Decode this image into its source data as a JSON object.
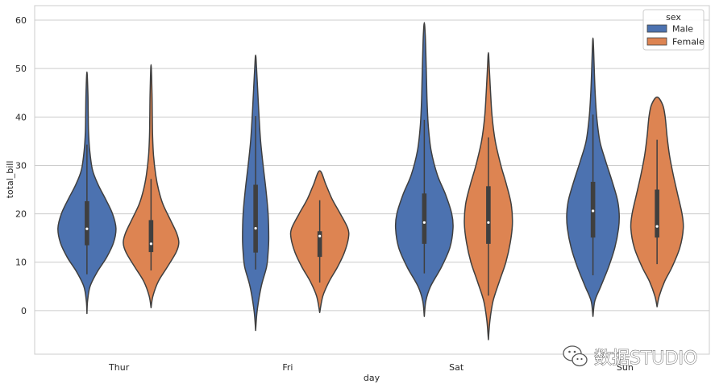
{
  "chart_data": {
    "type": "violin",
    "xlabel": "day",
    "ylabel": "total_bill",
    "categories": [
      "Thur",
      "Fri",
      "Sat",
      "Sun"
    ],
    "ylim": [
      -9,
      63
    ],
    "yticks": [
      0,
      10,
      20,
      30,
      40,
      50,
      60
    ],
    "grid": true,
    "legend": {
      "title": "sex",
      "placement": "top-right"
    },
    "series": [
      {
        "name": "Male",
        "color": "#4c72b0",
        "violins": [
          {
            "category": "Thur",
            "min": -0.6,
            "max": 49.3,
            "q1": 13.5,
            "median": 16.9,
            "q3": 22.6,
            "whisker_low": 7.5,
            "whisker_high": 34.3,
            "profile": [
              [
                -0.6,
                0
              ],
              [
                2,
                0.02
              ],
              [
                5,
                0.1
              ],
              [
                8,
                0.33
              ],
              [
                11,
                0.63
              ],
              [
                14,
                0.85
              ],
              [
                17,
                0.93
              ],
              [
                20,
                0.82
              ],
              [
                23,
                0.6
              ],
              [
                26,
                0.36
              ],
              [
                29,
                0.18
              ],
              [
                33,
                0.09
              ],
              [
                37,
                0.05
              ],
              [
                41,
                0.04
              ],
              [
                45,
                0.03
              ],
              [
                49.3,
                0
              ]
            ]
          },
          {
            "category": "Fri",
            "min": -4.1,
            "max": 52.8,
            "q1": 12.0,
            "median": 17.0,
            "q3": 26.0,
            "whisker_low": 8.5,
            "whisker_high": 40.2,
            "profile": [
              [
                -4.1,
                0
              ],
              [
                0,
                0.05
              ],
              [
                5,
                0.18
              ],
              [
                9,
                0.35
              ],
              [
                12,
                0.4
              ],
              [
                15,
                0.42
              ],
              [
                20,
                0.4
              ],
              [
                25,
                0.33
              ],
              [
                30,
                0.24
              ],
              [
                35,
                0.16
              ],
              [
                40,
                0.11
              ],
              [
                45,
                0.07
              ],
              [
                50,
                0.03
              ],
              [
                52.8,
                0
              ]
            ]
          },
          {
            "category": "Sat",
            "min": -1.2,
            "max": 59.5,
            "q1": 13.8,
            "median": 18.2,
            "q3": 24.2,
            "whisker_low": 7.7,
            "whisker_high": 39.4,
            "profile": [
              [
                -1.2,
                0
              ],
              [
                2,
                0.05
              ],
              [
                5,
                0.2
              ],
              [
                9,
                0.55
              ],
              [
                13,
                0.82
              ],
              [
                17,
                0.92
              ],
              [
                20,
                0.88
              ],
              [
                24,
                0.68
              ],
              [
                28,
                0.42
              ],
              [
                33,
                0.22
              ],
              [
                38,
                0.13
              ],
              [
                43,
                0.09
              ],
              [
                48,
                0.07
              ],
              [
                53,
                0.05
              ],
              [
                57,
                0.03
              ],
              [
                59.5,
                0
              ]
            ]
          },
          {
            "category": "Sun",
            "min": -1.2,
            "max": 56.3,
            "q1": 15.1,
            "median": 20.6,
            "q3": 26.6,
            "whisker_low": 7.3,
            "whisker_high": 40.5,
            "profile": [
              [
                -1.2,
                0
              ],
              [
                2,
                0.06
              ],
              [
                5,
                0.25
              ],
              [
                9,
                0.5
              ],
              [
                13,
                0.7
              ],
              [
                17,
                0.82
              ],
              [
                20,
                0.84
              ],
              [
                23,
                0.78
              ],
              [
                27,
                0.6
              ],
              [
                31,
                0.4
              ],
              [
                35,
                0.22
              ],
              [
                40,
                0.12
              ],
              [
                45,
                0.07
              ],
              [
                50,
                0.04
              ],
              [
                54,
                0.02
              ],
              [
                56.3,
                0
              ]
            ]
          }
        ]
      },
      {
        "name": "Female",
        "color": "#dd8452",
        "violins": [
          {
            "category": "Thur",
            "min": 0.6,
            "max": 50.8,
            "q1": 12.1,
            "median": 13.8,
            "q3": 18.7,
            "whisker_low": 8.3,
            "whisker_high": 27.2,
            "profile": [
              [
                0.6,
                0
              ],
              [
                3,
                0.06
              ],
              [
                6,
                0.23
              ],
              [
                9,
                0.52
              ],
              [
                12,
                0.8
              ],
              [
                14,
                0.89
              ],
              [
                16,
                0.82
              ],
              [
                19,
                0.6
              ],
              [
                22,
                0.38
              ],
              [
                25,
                0.24
              ],
              [
                28,
                0.15
              ],
              [
                32,
                0.08
              ],
              [
                36,
                0.05
              ],
              [
                40,
                0.04
              ],
              [
                45,
                0.03
              ],
              [
                50.8,
                0
              ]
            ]
          },
          {
            "category": "Fri",
            "min": -0.4,
            "max": 28.9,
            "q1": 11.1,
            "median": 15.4,
            "q3": 16.4,
            "whisker_low": 5.8,
            "whisker_high": 22.8,
            "profile": [
              [
                -0.4,
                0
              ],
              [
                3,
                0.1
              ],
              [
                6,
                0.3
              ],
              [
                9,
                0.57
              ],
              [
                12,
                0.79
              ],
              [
                15,
                0.92
              ],
              [
                17,
                0.9
              ],
              [
                20,
                0.66
              ],
              [
                23,
                0.4
              ],
              [
                26,
                0.2
              ],
              [
                28.9,
                0
              ]
            ]
          },
          {
            "category": "Sat",
            "min": -6.0,
            "max": 53.3,
            "q1": 13.8,
            "median": 18.2,
            "q3": 25.7,
            "whisker_low": 3.1,
            "whisker_high": 35.8,
            "profile": [
              [
                -6,
                0
              ],
              [
                -2,
                0.05
              ],
              [
                2,
                0.15
              ],
              [
                6,
                0.35
              ],
              [
                10,
                0.56
              ],
              [
                14,
                0.7
              ],
              [
                18,
                0.77
              ],
              [
                22,
                0.73
              ],
              [
                26,
                0.58
              ],
              [
                30,
                0.4
              ],
              [
                35,
                0.22
              ],
              [
                40,
                0.12
              ],
              [
                45,
                0.07
              ],
              [
                50,
                0.03
              ],
              [
                53.3,
                0
              ]
            ]
          },
          {
            "category": "Sun",
            "min": 0.8,
            "max": 44.1,
            "q1": 15.1,
            "median": 17.4,
            "q3": 25.0,
            "whisker_low": 9.6,
            "whisker_high": 35.3,
            "profile": [
              [
                0.8,
                0
              ],
              [
                3,
                0.07
              ],
              [
                6,
                0.24
              ],
              [
                9,
                0.48
              ],
              [
                13,
                0.73
              ],
              [
                17,
                0.84
              ],
              [
                20,
                0.8
              ],
              [
                24,
                0.66
              ],
              [
                28,
                0.52
              ],
              [
                32,
                0.4
              ],
              [
                36,
                0.32
              ],
              [
                40,
                0.26
              ],
              [
                42.5,
                0.18
              ],
              [
                44.1,
                0
              ]
            ]
          }
        ]
      }
    ]
  },
  "watermark": {
    "text": "数据STUDIO",
    "icon": "wechat-icon"
  }
}
